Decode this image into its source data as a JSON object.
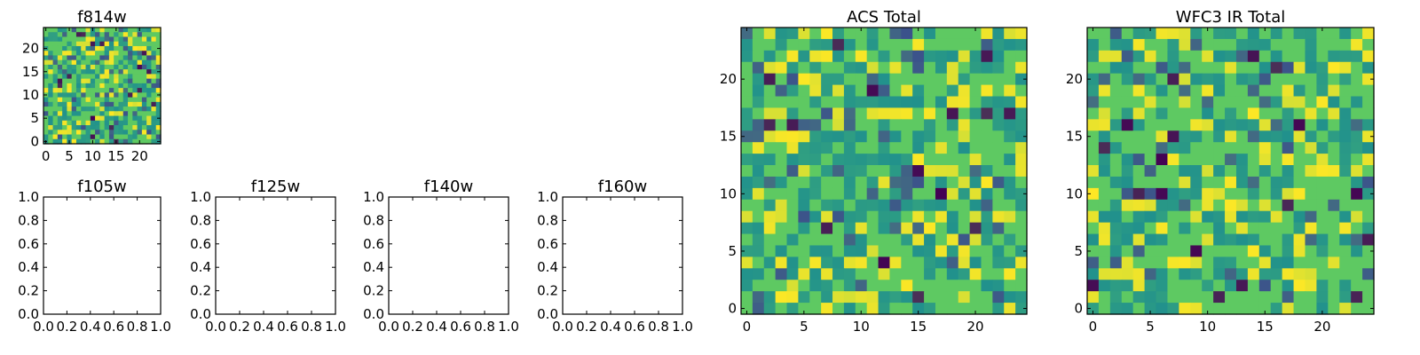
{
  "palette": [
    "#440154",
    "#3b528b",
    "#21918c",
    "#5ec962",
    "#fde725"
  ],
  "chart_data": [
    {
      "type": "heatmap",
      "title": "f814w",
      "grid_size": 25,
      "xticks": [
        0,
        5,
        10,
        15,
        20
      ],
      "yticks": [
        0,
        5,
        10,
        15,
        20
      ],
      "xlim": [
        -0.5,
        24.5
      ],
      "ylim": [
        -0.5,
        24.5
      ],
      "colormap": "viridis",
      "values_note": "noise-like random field"
    },
    {
      "type": "heatmap",
      "title": "ACS Total",
      "grid_size": 25,
      "xticks": [
        0,
        5,
        10,
        15,
        20
      ],
      "yticks": [
        0,
        5,
        10,
        15,
        20
      ],
      "xlim": [
        -0.5,
        24.5
      ],
      "ylim": [
        -0.5,
        24.5
      ],
      "colormap": "viridis"
    },
    {
      "type": "heatmap",
      "title": "WFC3 IR Total",
      "grid_size": 25,
      "xticks": [
        0,
        5,
        10,
        15,
        20
      ],
      "yticks": [
        0,
        5,
        10,
        15,
        20
      ],
      "xlim": [
        -0.5,
        24.5
      ],
      "ylim": [
        -0.5,
        24.5
      ],
      "colormap": "viridis"
    },
    {
      "type": "empty",
      "title": "f105w",
      "xticks": [
        "0.0",
        "0.2",
        "0.4",
        "0.6",
        "0.8",
        "1.0"
      ],
      "yticks": [
        "0.0",
        "0.2",
        "0.4",
        "0.6",
        "0.8",
        "1.0"
      ],
      "xlim": [
        0,
        1
      ],
      "ylim": [
        0,
        1
      ]
    },
    {
      "type": "empty",
      "title": "f125w",
      "xticks": [
        "0.0",
        "0.2",
        "0.4",
        "0.6",
        "0.8",
        "1.0"
      ],
      "yticks": [
        "0.0",
        "0.2",
        "0.4",
        "0.6",
        "0.8",
        "1.0"
      ],
      "xlim": [
        0,
        1
      ],
      "ylim": [
        0,
        1
      ]
    },
    {
      "type": "empty",
      "title": "f140w",
      "xticks": [
        "0.0",
        "0.2",
        "0.4",
        "0.6",
        "0.8",
        "1.0"
      ],
      "yticks": [
        "0.0",
        "0.2",
        "0.4",
        "0.6",
        "0.8",
        "1.0"
      ],
      "xlim": [
        0,
        1
      ],
      "ylim": [
        0,
        1
      ]
    },
    {
      "type": "empty",
      "title": "f160w",
      "xticks": [
        "0.0",
        "0.2",
        "0.4",
        "0.6",
        "0.8",
        "1.0"
      ],
      "yticks": [
        "0.0",
        "0.2",
        "0.4",
        "0.6",
        "0.8",
        "1.0"
      ],
      "xlim": [
        0,
        1
      ],
      "ylim": [
        0,
        1
      ]
    }
  ]
}
